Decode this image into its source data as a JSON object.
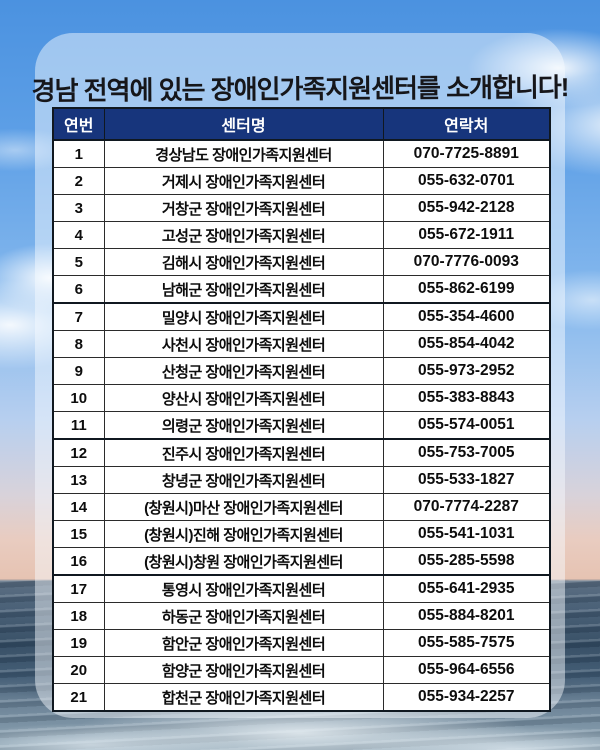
{
  "title": "경남 전역에 있는 장애인가족지원센터를 소개합니다!",
  "colors": {
    "header_bg": "#17357c",
    "header_text": "#ffffff",
    "table_border": "#101820",
    "row_bg": "#ffffff",
    "sky_top": "#4b92e0",
    "sunset_band": "#e9ccc0",
    "sea_dark": "#32495f"
  },
  "table": {
    "headers": [
      "연번",
      "센터명",
      "연락처"
    ],
    "group_breaks_after": [
      6,
      11,
      16
    ],
    "rows": [
      {
        "no": "1",
        "name": "경상남도 장애인가족지원센터",
        "phone": "070-7725-8891"
      },
      {
        "no": "2",
        "name": "거제시 장애인가족지원센터",
        "phone": "055-632-0701"
      },
      {
        "no": "3",
        "name": "거창군 장애인가족지원센터",
        "phone": "055-942-2128"
      },
      {
        "no": "4",
        "name": "고성군 장애인가족지원센터",
        "phone": "055-672-1911"
      },
      {
        "no": "5",
        "name": "김해시 장애인가족지원센터",
        "phone": "070-7776-0093"
      },
      {
        "no": "6",
        "name": "남해군 장애인가족지원센터",
        "phone": "055-862-6199"
      },
      {
        "no": "7",
        "name": "밀양시 장애인가족지원센터",
        "phone": "055-354-4600"
      },
      {
        "no": "8",
        "name": "사천시 장애인가족지원센터",
        "phone": "055-854-4042"
      },
      {
        "no": "9",
        "name": "산청군 장애인가족지원센터",
        "phone": "055-973-2952"
      },
      {
        "no": "10",
        "name": "양산시 장애인가족지원센터",
        "phone": "055-383-8843"
      },
      {
        "no": "11",
        "name": "의령군 장애인가족지원센터",
        "phone": "055-574-0051"
      },
      {
        "no": "12",
        "name": "진주시 장애인가족지원센터",
        "phone": "055-753-7005"
      },
      {
        "no": "13",
        "name": "창녕군 장애인가족지원센터",
        "phone": "055-533-1827"
      },
      {
        "no": "14",
        "name": "(창원시)마산 장애인가족지원센터",
        "phone": "070-7774-2287"
      },
      {
        "no": "15",
        "name": "(창원시)진해 장애인가족지원센터",
        "phone": "055-541-1031"
      },
      {
        "no": "16",
        "name": "(창원시)창원 장애인가족지원센터",
        "phone": "055-285-5598"
      },
      {
        "no": "17",
        "name": "통영시 장애인가족지원센터",
        "phone": "055-641-2935"
      },
      {
        "no": "18",
        "name": "하동군 장애인가족지원센터",
        "phone": "055-884-8201"
      },
      {
        "no": "19",
        "name": "함안군 장애인가족지원센터",
        "phone": "055-585-7575"
      },
      {
        "no": "20",
        "name": "함양군 장애인가족지원센터",
        "phone": "055-964-6556"
      },
      {
        "no": "21",
        "name": "합천군 장애인가족지원센터",
        "phone": "055-934-2257"
      }
    ]
  }
}
